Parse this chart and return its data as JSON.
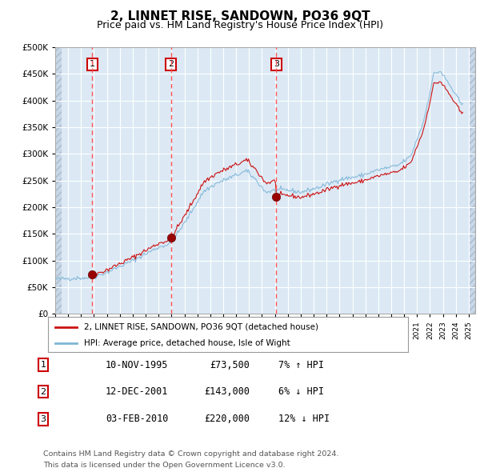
{
  "title": "2, LINNET RISE, SANDOWN, PO36 9QT",
  "subtitle": "Price paid vs. HM Land Registry's House Price Index (HPI)",
  "title_fontsize": 11,
  "subtitle_fontsize": 9,
  "ylim": [
    0,
    500000
  ],
  "yticks": [
    0,
    50000,
    100000,
    150000,
    200000,
    250000,
    300000,
    350000,
    400000,
    450000,
    500000
  ],
  "hpi_color": "#7eb5d6",
  "price_color": "#cc1111",
  "vline_color": "#ff5555",
  "marker_color": "#990000",
  "legend_label_price": "2, LINNET RISE, SANDOWN, PO36 9QT (detached house)",
  "legend_label_hpi": "HPI: Average price, detached house, Isle of Wight",
  "transactions": [
    {
      "num": 1,
      "date": "10-NOV-1995",
      "price": 73500,
      "hpi_rel": "7% ↑ HPI",
      "x_year": 1995.87
    },
    {
      "num": 2,
      "date": "12-DEC-2001",
      "price": 143000,
      "hpi_rel": "6% ↓ HPI",
      "x_year": 2001.95
    },
    {
      "num": 3,
      "date": "03-FEB-2010",
      "price": 220000,
      "hpi_rel": "12% ↓ HPI",
      "x_year": 2010.1
    }
  ],
  "footer_line1": "Contains HM Land Registry data © Crown copyright and database right 2024.",
  "footer_line2": "This data is licensed under the Open Government Licence v3.0.",
  "bg_color": "#ffffff",
  "plot_bg_color": "#dce9f5",
  "hatch_region_color": "#c8d8e8",
  "grid_color": "#ffffff",
  "xlim_left": 1993.0,
  "xlim_right": 2025.5
}
